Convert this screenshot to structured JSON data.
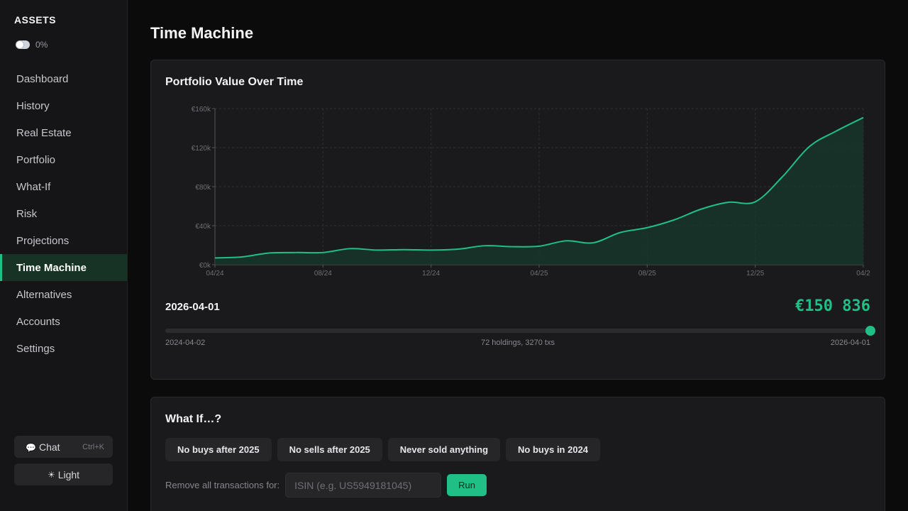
{
  "sidebar": {
    "brand": "ASSETS",
    "privacy_value": "0%",
    "items": [
      {
        "label": "Dashboard"
      },
      {
        "label": "History"
      },
      {
        "label": "Real Estate"
      },
      {
        "label": "Portfolio"
      },
      {
        "label": "What-If"
      },
      {
        "label": "Risk"
      },
      {
        "label": "Projections"
      },
      {
        "label": "Time Machine",
        "active": true
      },
      {
        "label": "Alternatives"
      },
      {
        "label": "Accounts"
      },
      {
        "label": "Settings"
      }
    ],
    "chat_label": "Chat",
    "chat_shortcut": "Ctrl+K",
    "theme_label": "Light",
    "chat_icon": "speech-bubble-icon",
    "theme_icon": "sun-icon"
  },
  "page": {
    "title": "Time Machine"
  },
  "chart_card": {
    "title": "Portfolio Value Over Time",
    "selected_date": "2026-04-01",
    "selected_value": "€150 836",
    "slider": {
      "start_label": "2024-04-02",
      "end_label": "2026-04-01",
      "center_label": "72 holdings, 3270 txs",
      "position_fraction": 1.0
    }
  },
  "chart_data": {
    "type": "area",
    "title": "Portfolio Value Over Time",
    "xlabel": "",
    "ylabel": "",
    "x_ticks": [
      "04/24",
      "08/24",
      "12/24",
      "04/25",
      "08/25",
      "12/25",
      "04/2"
    ],
    "y_ticks": [
      "€0k",
      "€40k",
      "€80k",
      "€120k",
      "€160k"
    ],
    "ylim": [
      0,
      160000
    ],
    "xlim_months": [
      0,
      24
    ],
    "grid": true,
    "color": "#1fbf86",
    "fill_color": "#17392c",
    "points": [
      {
        "month": 0.0,
        "value": 7000
      },
      {
        "month": 1.0,
        "value": 8000
      },
      {
        "month": 2.0,
        "value": 12000
      },
      {
        "month": 3.0,
        "value": 12500
      },
      {
        "month": 4.0,
        "value": 12500
      },
      {
        "month": 5.0,
        "value": 16500
      },
      {
        "month": 6.0,
        "value": 15000
      },
      {
        "month": 7.0,
        "value": 15500
      },
      {
        "month": 8.0,
        "value": 15000
      },
      {
        "month": 9.0,
        "value": 16000
      },
      {
        "month": 10.0,
        "value": 19500
      },
      {
        "month": 11.0,
        "value": 18500
      },
      {
        "month": 12.0,
        "value": 19000
      },
      {
        "month": 13.0,
        "value": 24500
      },
      {
        "month": 14.0,
        "value": 22500
      },
      {
        "month": 15.0,
        "value": 33000
      },
      {
        "month": 16.0,
        "value": 38000
      },
      {
        "month": 17.0,
        "value": 46000
      },
      {
        "month": 18.0,
        "value": 57000
      },
      {
        "month": 19.0,
        "value": 64000
      },
      {
        "month": 20.0,
        "value": 64500
      },
      {
        "month": 21.0,
        "value": 90000
      },
      {
        "month": 22.0,
        "value": 121000
      },
      {
        "month": 23.0,
        "value": 137000
      },
      {
        "month": 24.0,
        "value": 150836
      }
    ]
  },
  "whatif": {
    "title": "What If…?",
    "buttons": [
      {
        "label": "No buys after 2025"
      },
      {
        "label": "No sells after 2025"
      },
      {
        "label": "Never sold anything"
      },
      {
        "label": "No buys in 2024"
      }
    ],
    "remove_label": "Remove all transactions for:",
    "isin_placeholder": "ISIN (e.g. US5949181045)",
    "isin_value": "",
    "run_label": "Run"
  }
}
